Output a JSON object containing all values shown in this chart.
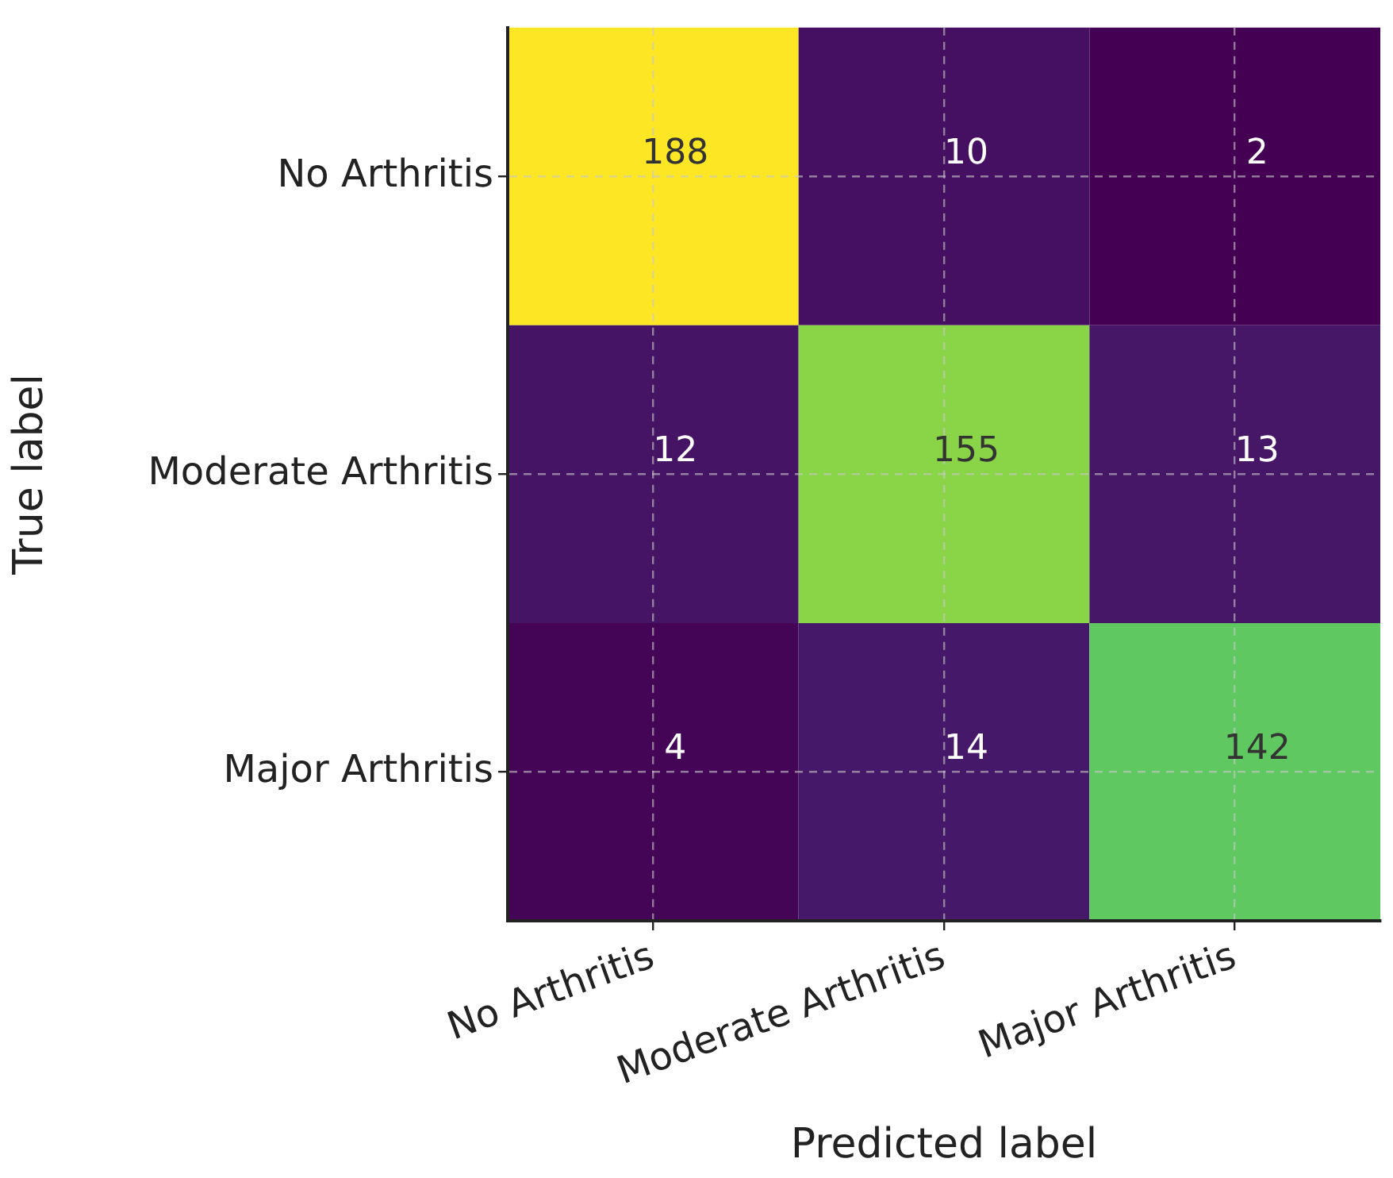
{
  "chart_data": {
    "type": "heatmap",
    "xlabel": "Predicted label",
    "ylabel": "True label",
    "categories": [
      "No Arthritis",
      "Moderate Arthritis",
      "Major Arthritis"
    ],
    "y_categories": [
      "No Arthritis",
      "Moderate Arthritis",
      "Major Arthritis"
    ],
    "cells": [
      [
        188,
        10,
        2
      ],
      [
        12,
        155,
        13
      ],
      [
        4,
        14,
        142
      ]
    ],
    "data_labels": true,
    "grid": true
  }
}
